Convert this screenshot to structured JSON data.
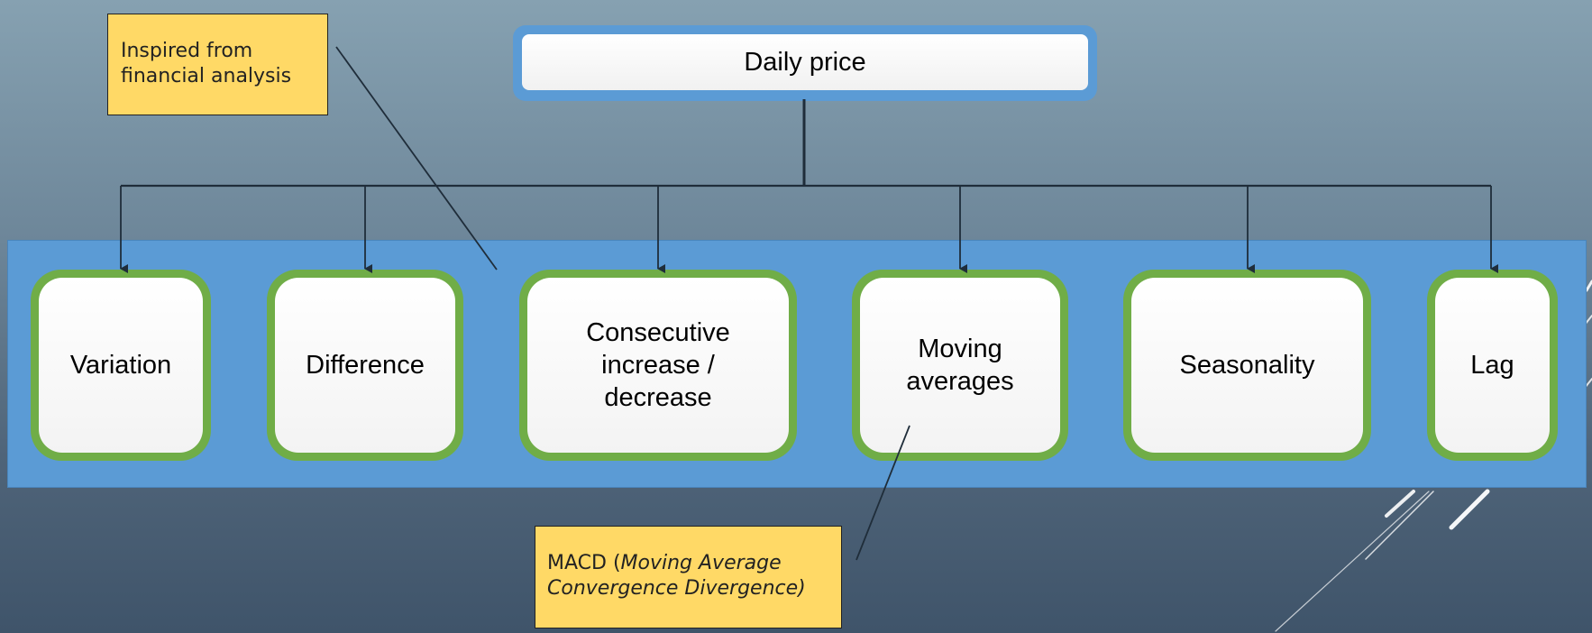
{
  "root": {
    "label": "Daily price"
  },
  "features": [
    {
      "label": "Variation"
    },
    {
      "label": "Difference"
    },
    {
      "label": "Consecutive\nincrease /\ndecrease"
    },
    {
      "label": "Moving\naverages"
    },
    {
      "label": "Seasonality"
    },
    {
      "label": "Lag"
    }
  ],
  "notes": {
    "financial": {
      "text": "Inspired from\nfinancial analysis"
    },
    "macd": {
      "prefix": "MACD (",
      "italic": "Moving Average\nConvergence Divergence)"
    }
  },
  "colors": {
    "root_border": "#5b9bd5",
    "band": "#5b9bd5",
    "node_border": "#70ad47",
    "note_fill": "#ffd966",
    "connector": "#1f2d3a"
  }
}
